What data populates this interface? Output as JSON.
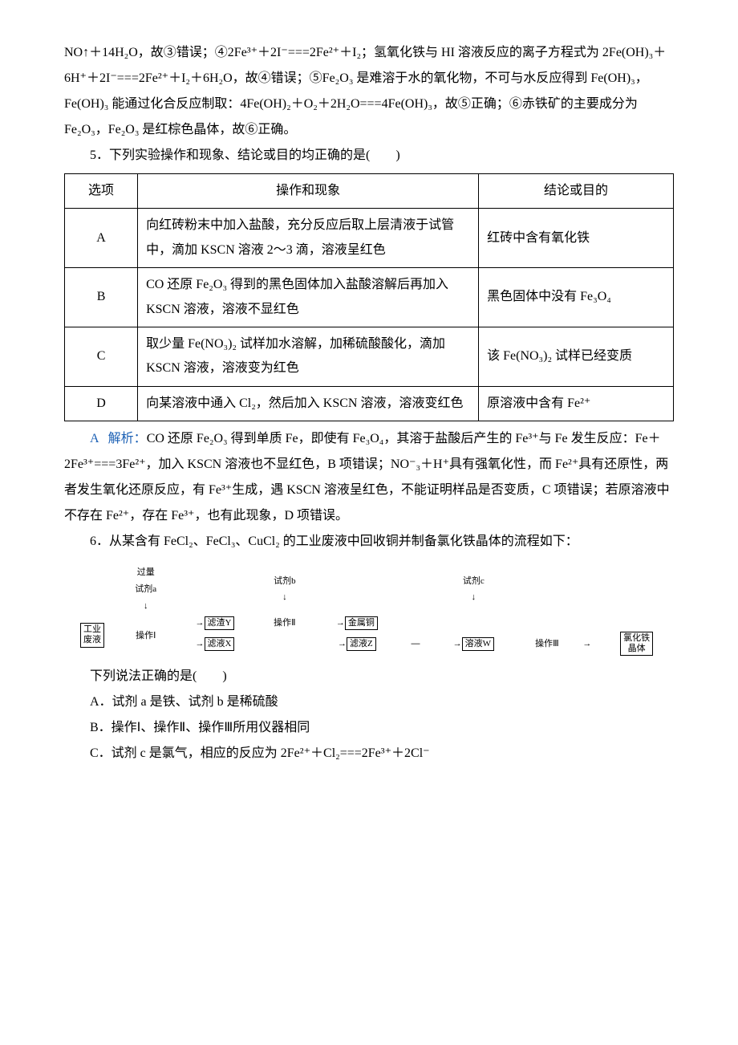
{
  "top_paragraph": "NO↑＋14H₂O，故③错误；④2Fe³⁺＋2I⁻===2Fe²⁺＋I₂；氢氧化铁与 HI 溶液反应的离子方程式为 2Fe(OH)₃＋6H⁺＋2I⁻===2Fe²⁺＋I₂＋6H₂O，故④错误；⑤Fe₂O₃ 是难溶于水的氧化物，不可与水反应得到 Fe(OH)₃，Fe(OH)₃ 能通过化合反应制取：4Fe(OH)₂＋O₂＋2H₂O===4Fe(OH)₃，故⑤正确；⑥赤铁矿的主要成分为 Fe₂O₃，Fe₂O₃ 是红棕色晶体，故⑥正确。",
  "q5": {
    "stem": "5．下列实验操作和现象、结论或目的均正确的是(　　)",
    "headers": {
      "opt": "选项",
      "op": "操作和现象",
      "conc": "结论或目的"
    },
    "rows": [
      {
        "opt": "A",
        "op": "向红砖粉末中加入盐酸，充分反应后取上层清液于试管中，滴加 KSCN 溶液 2～3 滴，溶液呈红色",
        "conc": "红砖中含有氧化铁"
      },
      {
        "opt": "B",
        "op": "CO 还原 Fe₂O₃ 得到的黑色固体加入盐酸溶解后再加入 KSCN 溶液，溶液不显红色",
        "conc": "黑色固体中没有 Fe₃O₄"
      },
      {
        "opt": "C",
        "op": "取少量 Fe(NO₃)₂ 试样加水溶解，加稀硫酸酸化，滴加 KSCN 溶液，溶液变为红色",
        "conc": "该 Fe(NO₃)₂ 试样已经变质"
      },
      {
        "opt": "D",
        "op": "向某溶液中通入 Cl₂，然后加入 KSCN 溶液，溶液变红色",
        "conc": "原溶液中含有 Fe²⁺"
      }
    ],
    "answer_letter": "A",
    "answer_label": "解析：",
    "explanation": "CO 还原 Fe₂O₃ 得到单质 Fe，即使有 Fe₃O₄，其溶于盐酸后产生的 Fe³⁺与 Fe 发生反应：Fe＋2Fe³⁺===3Fe²⁺，加入 KSCN 溶液也不显红色，B 项错误；NO⁻₃＋H⁺具有强氧化性，而 Fe²⁺具有还原性，两者发生氧化还原反应，有 Fe³⁺生成，遇 KSCN 溶液呈红色，不能证明样品是否变质，C 项错误；若原溶液中不存在 Fe²⁺，存在 Fe³⁺，也有此现象，D 项错误。"
  },
  "q6": {
    "stem": "6．从某含有 FeCl₂、FeCl₃、CuCl₂ 的工业废液中回收铜并制备氯化铁晶体的流程如下：",
    "flow": {
      "a_top1": "过量",
      "a_top2": "试剂a",
      "b_top": "试剂b",
      "c_top": "试剂c",
      "box_start_l1": "工业",
      "box_start_l2": "废液",
      "op1": "操作Ⅰ",
      "box_y": "滤渣Y",
      "op2": "操作Ⅱ",
      "box_cu": "金属铜",
      "box_x": "滤液X",
      "box_z": "滤液Z",
      "box_w": "溶液W",
      "op3": "操作Ⅲ",
      "box_end_l1": "氯化铁",
      "box_end_l2": "晶体"
    },
    "sub_stem": "下列说法正确的是(　　)",
    "options": {
      "A": "A．试剂 a 是铁、试剂 b 是稀硫酸",
      "B": "B．操作Ⅰ、操作Ⅱ、操作Ⅲ所用仪器相同",
      "C": "C．试剂 c 是氯气，相应的反应为 2Fe²⁺＋Cl₂===2Fe³⁺＋2Cl⁻"
    }
  }
}
